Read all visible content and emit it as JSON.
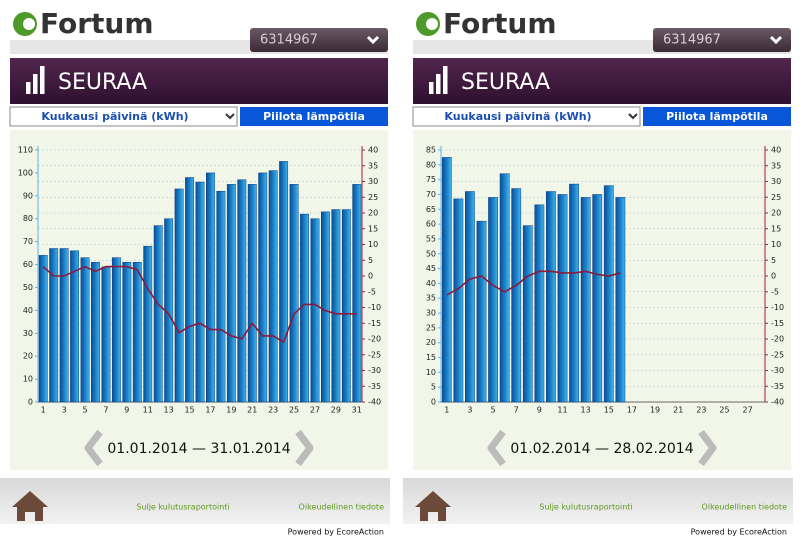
{
  "screens": [
    {
      "logo": "Fortum",
      "account": "6314967",
      "section": "SEURAA",
      "period_select": "Kuukausi päivinä (kWh)",
      "toggle_button": "Piilota lämpötila",
      "date_range": "01.01.2014 — 31.01.2014",
      "links": [
        "Sulje kulutusraportointi",
        "Oikeudellinen tiedote"
      ],
      "powered": "Powered by EcoreAction"
    },
    {
      "logo": "Fortum",
      "account": "6314967",
      "section": "SEURAA",
      "period_select": "Kuukausi päivinä (kWh)",
      "toggle_button": "Piilota lämpötila",
      "date_range": "01.02.2014 — 28.02.2014",
      "links": [
        "Sulje kulutusraportointi",
        "Oikeudellinen tiedote"
      ],
      "powered": "Powered by EcoreAction"
    }
  ],
  "chart_data": [
    {
      "type": "bar",
      "categories": [
        1,
        null,
        3,
        null,
        5,
        null,
        7,
        null,
        9,
        null,
        11,
        null,
        13,
        null,
        15,
        null,
        17,
        null,
        19,
        null,
        21,
        null,
        23,
        null,
        25,
        null,
        27,
        null,
        29,
        null,
        31
      ],
      "series": [
        {
          "type": "bar",
          "color": "#1a7fc8",
          "values": [
            64,
            67,
            67,
            66,
            63,
            61,
            59,
            63,
            61,
            61,
            68,
            77,
            80,
            93,
            98,
            96,
            100,
            92,
            95,
            97,
            95,
            100,
            101,
            105,
            95,
            82,
            80,
            83,
            84,
            84,
            95
          ]
        },
        {
          "type": "line",
          "color": "#8b1a3a",
          "axis": "y2",
          "values": [
            3,
            0,
            0,
            1.5,
            3,
            1.5,
            3,
            3,
            3,
            2,
            -4,
            -9,
            -12,
            -18,
            -16,
            -15,
            -17,
            -17,
            -19,
            -20,
            -15,
            -19,
            -19,
            -21,
            -12,
            -9,
            -9,
            -11,
            -12,
            -12,
            -12
          ]
        }
      ],
      "ylim": [
        0,
        110
      ],
      "yticks": [
        0,
        10,
        20,
        30,
        40,
        50,
        60,
        70,
        80,
        90,
        100,
        110
      ],
      "y2lim": [
        -40,
        40
      ],
      "y2ticks": [
        -40,
        -35,
        -30,
        -25,
        -20,
        -15,
        -10,
        -5,
        0,
        5,
        10,
        15,
        20,
        25,
        30,
        35,
        40
      ],
      "grid": true
    },
    {
      "type": "bar",
      "categories": [
        1,
        null,
        3,
        null,
        5,
        null,
        7,
        null,
        9,
        null,
        11,
        null,
        13,
        null,
        15,
        null,
        17,
        null,
        19,
        null,
        21,
        null,
        23,
        null,
        25,
        null,
        27,
        null
      ],
      "series": [
        {
          "type": "bar",
          "color": "#1a7fc8",
          "values": [
            82.5,
            68.5,
            71,
            61,
            69,
            77,
            72,
            59.5,
            66.5,
            71,
            70,
            73.5,
            69,
            70,
            73,
            69,
            null,
            null,
            null,
            null,
            null,
            null,
            null,
            null,
            null,
            null,
            null,
            null
          ]
        },
        {
          "type": "line",
          "color": "#8b1a3a",
          "axis": "y2",
          "values": [
            -6,
            -4,
            -1,
            0,
            -3,
            -5,
            -3,
            0,
            1.5,
            1.5,
            1,
            1,
            1.5,
            0.5,
            0,
            1,
            null,
            null,
            null,
            null,
            null,
            null,
            null,
            null,
            null,
            null,
            null,
            null
          ]
        }
      ],
      "ylim": [
        0,
        85
      ],
      "yticks": [
        0,
        5,
        10,
        15,
        20,
        25,
        30,
        35,
        40,
        45,
        50,
        55,
        60,
        65,
        70,
        75,
        80,
        85
      ],
      "y2lim": [
        -40,
        40
      ],
      "y2ticks": [
        -40,
        -35,
        -30,
        -25,
        -20,
        -15,
        -10,
        -5,
        0,
        5,
        10,
        15,
        20,
        25,
        30,
        35,
        40
      ],
      "grid": true
    }
  ]
}
